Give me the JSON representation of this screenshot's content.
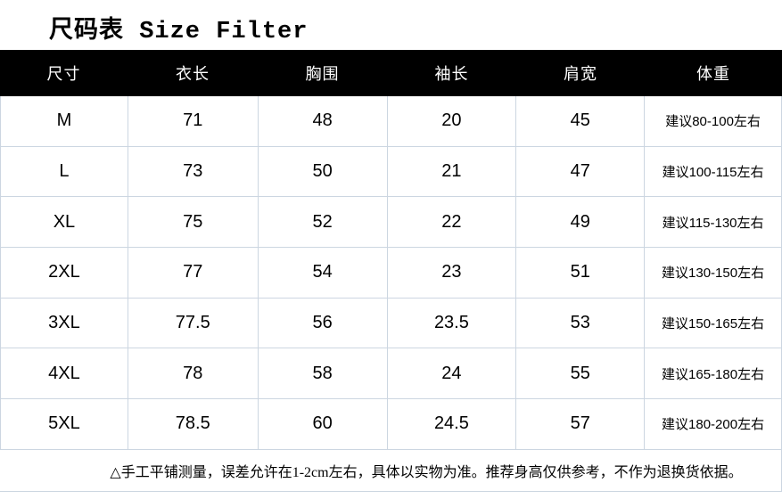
{
  "title": "尺码表 Size Filter",
  "table": {
    "headers": [
      "尺寸",
      "衣长",
      "胸围",
      "袖长",
      "肩宽",
      "体重"
    ],
    "rows": [
      [
        "M",
        "71",
        "48",
        "20",
        "45",
        "建议80-100左右"
      ],
      [
        "L",
        "73",
        "50",
        "21",
        "47",
        "建议100-115左右"
      ],
      [
        "XL",
        "75",
        "52",
        "22",
        "49",
        "建议115-130左右"
      ],
      [
        "2XL",
        "77",
        "54",
        "23",
        "51",
        "建议130-150左右"
      ],
      [
        "3XL",
        "77.5",
        "56",
        "23.5",
        "53",
        "建议150-165左右"
      ],
      [
        "4XL",
        "78",
        "58",
        "24",
        "55",
        "建议165-180左右"
      ],
      [
        "5XL",
        "78.5",
        "60",
        "24.5",
        "57",
        "建议180-200左右"
      ]
    ]
  },
  "note": "△手工平铺测量，误差允许在1-2cm左右，具体以实物为准。推荐身高仅供参考，不作为退换货依据。",
  "colors": {
    "header_bg": "#000000",
    "header_text": "#ffffff",
    "grid_line": "#ccd6e1",
    "text": "#000000",
    "background": "#ffffff"
  },
  "chart_data": {
    "type": "table",
    "title": "尺码表 Size Filter",
    "columns": [
      "尺寸",
      "衣长",
      "胸围",
      "袖长",
      "肩宽",
      "体重"
    ],
    "rows": [
      [
        "M",
        71,
        48,
        20,
        45,
        "建议80-100左右"
      ],
      [
        "L",
        73,
        50,
        21,
        47,
        "建议100-115左右"
      ],
      [
        "XL",
        75,
        52,
        22,
        49,
        "建议115-130左右"
      ],
      [
        "2XL",
        77,
        54,
        23,
        51,
        "建议130-150左右"
      ],
      [
        "3XL",
        77.5,
        56,
        23.5,
        53,
        "建议150-165左右"
      ],
      [
        "4XL",
        78,
        58,
        24,
        55,
        "建议165-180左右"
      ],
      [
        "5XL",
        78.5,
        60,
        24.5,
        57,
        "建议180-200左右"
      ]
    ],
    "footnote": "△手工平铺测量，误差允许在1-2cm左右，具体以实物为准。推荐身高仅供参考，不作为退换货依据。"
  }
}
